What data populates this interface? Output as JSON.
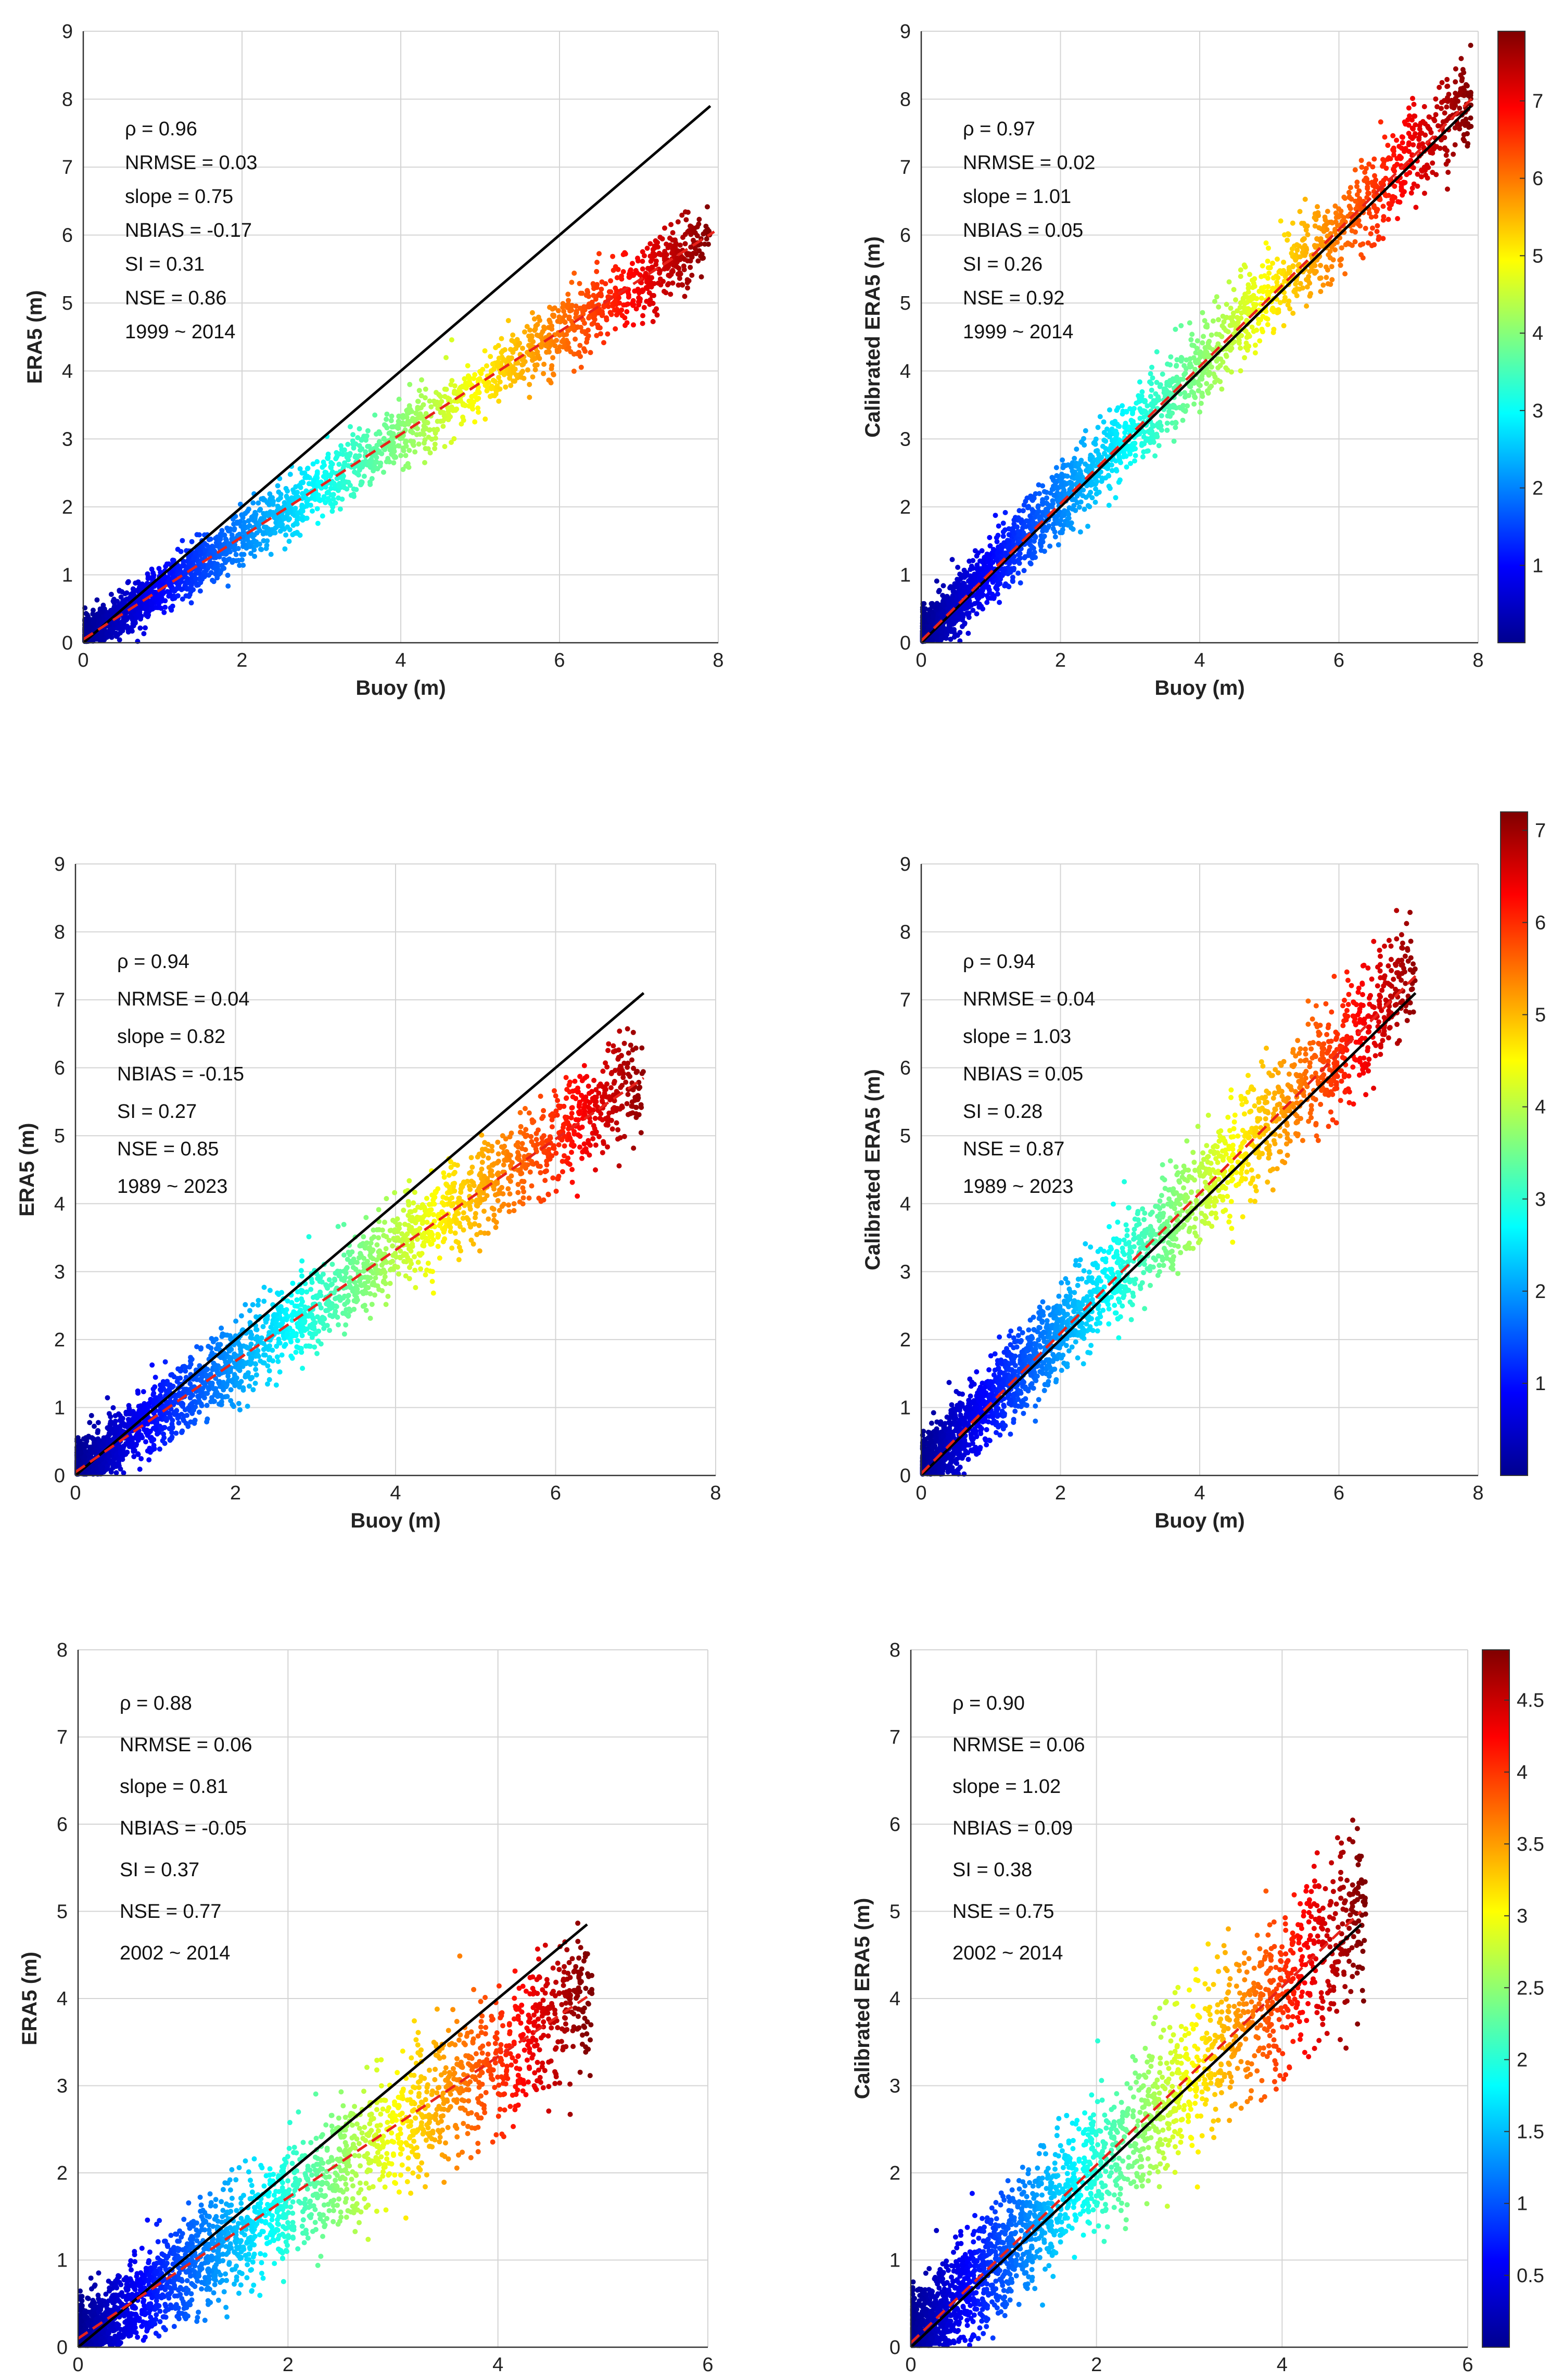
{
  "chart_data": [
    {
      "type": "scatter",
      "panel": "row1-left",
      "xlabel": "Buoy (m)",
      "ylabel": "ERA5 (m)",
      "xlim": [
        0,
        8
      ],
      "ylim": [
        0,
        9
      ],
      "xticks": [
        0,
        2,
        4,
        6,
        8
      ],
      "yticks": [
        0,
        1,
        2,
        3,
        4,
        5,
        6,
        7,
        8,
        9
      ],
      "grid": true,
      "stats": [
        "ρ = 0.96",
        "NRMSE = 0.03",
        "slope = 0.75",
        "NBIAS = -0.17",
        "SI = 0.31",
        "NSE = 0.86",
        "1999 ~ 2014"
      ],
      "identity_line": {
        "x": [
          0,
          7.9
        ],
        "y": [
          0,
          7.9
        ],
        "color": "#000000"
      },
      "fit_line": {
        "x": [
          0,
          7.95
        ],
        "y": [
          0.05,
          6.05
        ],
        "color": "#e8231b"
      },
      "scatter_trend": {
        "slope": 0.75,
        "x_max": 7.9,
        "spread": 0.28
      },
      "color_scale": {
        "min": 0,
        "max": 7.9
      }
    },
    {
      "type": "scatter",
      "panel": "row1-right",
      "xlabel": "Buoy (m)",
      "ylabel": "Calibrated ERA5 (m)",
      "xlim": [
        0,
        8
      ],
      "ylim": [
        0,
        9
      ],
      "xticks": [
        0,
        2,
        4,
        6,
        8
      ],
      "yticks": [
        0,
        1,
        2,
        3,
        4,
        5,
        6,
        7,
        8,
        9
      ],
      "grid": true,
      "stats": [
        "ρ = 0.97",
        "NRMSE = 0.02",
        "slope = 1.01",
        "NBIAS = 0.05",
        "SI = 0.26",
        "NSE = 0.92",
        "1999 ~ 2014"
      ],
      "identity_line": {
        "x": [
          0,
          7.9
        ],
        "y": [
          0,
          7.9
        ],
        "color": "#000000"
      },
      "fit_line": {
        "x": [
          0,
          7.95
        ],
        "y": [
          0.03,
          8.05
        ],
        "color": "#e8231b"
      },
      "scatter_trend": {
        "slope": 1.01,
        "x_max": 7.9,
        "spread": 0.36
      },
      "color_scale": {
        "min": 0,
        "max": 7.9
      },
      "colorbar": {
        "ticks": [
          1,
          2,
          3,
          4,
          5,
          6,
          7
        ],
        "min": 0,
        "max": 7.9
      }
    },
    {
      "type": "scatter",
      "panel": "row2-left",
      "xlabel": "Buoy (m)",
      "ylabel": "ERA5 (m)",
      "xlim": [
        0,
        8
      ],
      "ylim": [
        0,
        9
      ],
      "xticks": [
        0,
        2,
        4,
        6,
        8
      ],
      "yticks": [
        0,
        1,
        2,
        3,
        4,
        5,
        6,
        7,
        8,
        9
      ],
      "grid": true,
      "stats": [
        "ρ = 0.94",
        "NRMSE = 0.04",
        "slope = 0.82",
        "NBIAS = -0.15",
        "SI = 0.27",
        "NSE = 0.85",
        "1989 ~ 2023"
      ],
      "identity_line": {
        "x": [
          0,
          7.1
        ],
        "y": [
          0,
          7.1
        ],
        "color": "#000000"
      },
      "fit_line": {
        "x": [
          0,
          7.1
        ],
        "y": [
          0.05,
          5.85
        ],
        "color": "#e8231b"
      },
      "scatter_trend": {
        "slope": 0.82,
        "x_max": 7.1,
        "spread": 0.38
      },
      "color_scale": {
        "min": 0,
        "max": 7.2
      }
    },
    {
      "type": "scatter",
      "panel": "row2-right",
      "xlabel": "Buoy (m)",
      "ylabel": "Calibrated ERA5 (m)",
      "xlim": [
        0,
        8
      ],
      "ylim": [
        0,
        9
      ],
      "xticks": [
        0,
        2,
        4,
        6,
        8
      ],
      "yticks": [
        0,
        1,
        2,
        3,
        4,
        5,
        6,
        7,
        8,
        9
      ],
      "grid": true,
      "stats": [
        "ρ = 0.94",
        "NRMSE = 0.04",
        "slope = 1.03",
        "NBIAS = 0.05",
        "SI = 0.28",
        "NSE = 0.87",
        "1989 ~ 2023"
      ],
      "identity_line": {
        "x": [
          0,
          7.1
        ],
        "y": [
          0,
          7.1
        ],
        "color": "#000000"
      },
      "fit_line": {
        "x": [
          0,
          7.1
        ],
        "y": [
          0.03,
          7.35
        ],
        "color": "#e8231b"
      },
      "scatter_trend": {
        "slope": 1.03,
        "x_max": 7.1,
        "spread": 0.45
      },
      "color_scale": {
        "min": 0,
        "max": 7.2
      },
      "colorbar": {
        "ticks": [
          1,
          2,
          3,
          4,
          5,
          6,
          7
        ],
        "min": 0,
        "max": 7.2
      }
    },
    {
      "type": "scatter",
      "panel": "row3-left",
      "xlabel": "Buoy (m)",
      "ylabel": "ERA5 (m)",
      "xlim": [
        0,
        6
      ],
      "ylim": [
        0,
        8
      ],
      "xticks": [
        0,
        2,
        4,
        6
      ],
      "yticks": [
        0,
        1,
        2,
        3,
        4,
        5,
        6,
        7,
        8
      ],
      "grid": true,
      "stats": [
        "ρ = 0.88",
        "NRMSE = 0.06",
        "slope = 0.81",
        "NBIAS = -0.05",
        "SI = 0.37",
        "NSE = 0.77",
        "2002 ~ 2014"
      ],
      "identity_line": {
        "x": [
          0,
          4.85
        ],
        "y": [
          0,
          4.85
        ],
        "color": "#000000"
      },
      "fit_line": {
        "x": [
          0,
          4.85
        ],
        "y": [
          0.1,
          4.02
        ],
        "color": "#e8231b"
      },
      "scatter_trend": {
        "slope": 0.81,
        "x_max": 4.9,
        "spread": 0.42
      },
      "color_scale": {
        "min": 0,
        "max": 4.85
      }
    },
    {
      "type": "scatter",
      "panel": "row3-right",
      "xlabel": "Buoy (m)",
      "ylabel": "Calibrated ERA5 (m)",
      "xlim": [
        0,
        6
      ],
      "ylim": [
        0,
        8
      ],
      "xticks": [
        0,
        2,
        4,
        6
      ],
      "yticks": [
        0,
        1,
        2,
        3,
        4,
        5,
        6,
        7,
        8
      ],
      "grid": true,
      "stats": [
        "ρ = 0.90",
        "NRMSE = 0.06",
        "slope = 1.02",
        "NBIAS = 0.09",
        "SI = 0.38",
        "NSE = 0.75",
        "2002 ~ 2014"
      ],
      "identity_line": {
        "x": [
          0,
          4.85
        ],
        "y": [
          0,
          4.85
        ],
        "color": "#000000"
      },
      "fit_line": {
        "x": [
          0,
          4.85
        ],
        "y": [
          0.05,
          5.0
        ],
        "color": "#e8231b"
      },
      "scatter_trend": {
        "slope": 1.02,
        "x_max": 4.9,
        "spread": 0.5
      },
      "color_scale": {
        "min": 0,
        "max": 4.85
      },
      "colorbar": {
        "ticks": [
          0.5,
          1,
          1.5,
          2,
          2.5,
          3,
          3.5,
          4,
          4.5
        ],
        "min": 0,
        "max": 4.85
      }
    }
  ],
  "colormap": [
    "#00008f",
    "#0000ff",
    "#0080ff",
    "#00ffff",
    "#80ff80",
    "#ffff00",
    "#ff8000",
    "#ff0000",
    "#800000"
  ]
}
